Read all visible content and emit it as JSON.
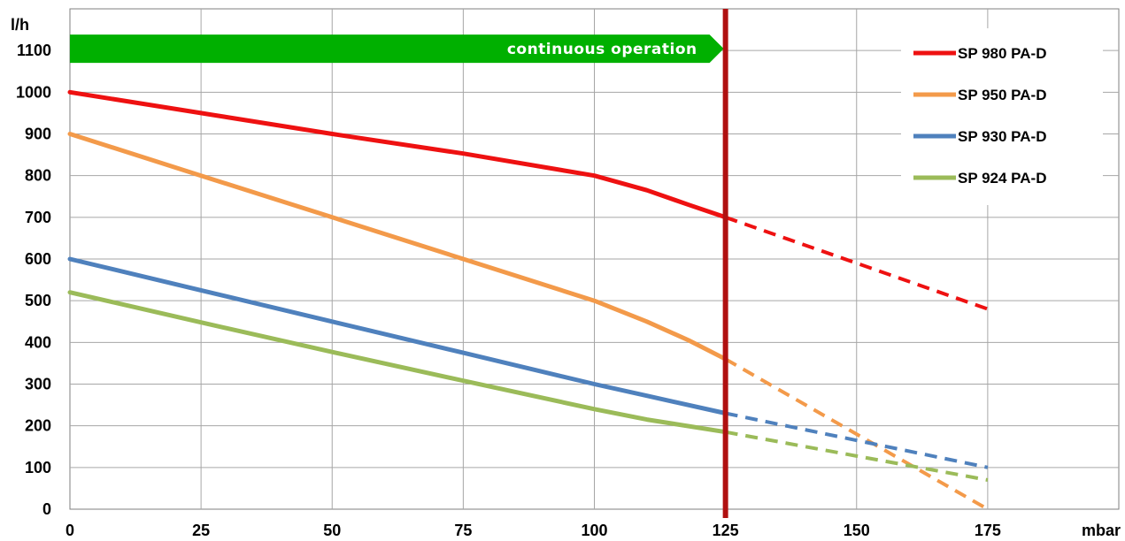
{
  "chart_data": {
    "type": "line",
    "xlabel": "mbar",
    "ylabel": "l/h",
    "xlim": [
      0,
      200
    ],
    "ylim": [
      0,
      1200
    ],
    "x_ticks": [
      0,
      25,
      50,
      75,
      100,
      125,
      150,
      175
    ],
    "y_ticks": [
      0,
      100,
      200,
      300,
      400,
      500,
      600,
      700,
      800,
      900,
      1000,
      1100
    ],
    "grid": true,
    "legend_position": "top-right",
    "limit_line": {
      "x": 125,
      "color": "#b01010"
    },
    "banner": {
      "label": "continuous operation",
      "x_start": 0,
      "x_end": 125,
      "y": 1100,
      "color": "#00b000"
    },
    "series": [
      {
        "name": "SP 980 PA-D",
        "color": "#ee1111",
        "solid": [
          [
            0,
            1000
          ],
          [
            25,
            950
          ],
          [
            50,
            900
          ],
          [
            75,
            853
          ],
          [
            100,
            800
          ],
          [
            110,
            765
          ],
          [
            118,
            730
          ],
          [
            125,
            700
          ]
        ],
        "dashed": [
          [
            125,
            700
          ],
          [
            175,
            480
          ]
        ]
      },
      {
        "name": "SP 950 PA-D",
        "color": "#f39a4a",
        "solid": [
          [
            0,
            900
          ],
          [
            25,
            800
          ],
          [
            50,
            700
          ],
          [
            75,
            600
          ],
          [
            100,
            500
          ],
          [
            110,
            450
          ],
          [
            118,
            405
          ],
          [
            125,
            360
          ]
        ],
        "dashed": [
          [
            125,
            360
          ],
          [
            175,
            0
          ]
        ]
      },
      {
        "name": "SP 930 PA-D",
        "color": "#4f81bd",
        "solid": [
          [
            0,
            600
          ],
          [
            25,
            525
          ],
          [
            50,
            450
          ],
          [
            75,
            375
          ],
          [
            100,
            300
          ],
          [
            110,
            272
          ],
          [
            125,
            230
          ]
        ],
        "dashed": [
          [
            125,
            230
          ],
          [
            175,
            100
          ]
        ]
      },
      {
        "name": "SP 924 PA-D",
        "color": "#9bbb59",
        "solid": [
          [
            0,
            520
          ],
          [
            25,
            448
          ],
          [
            50,
            377
          ],
          [
            75,
            308
          ],
          [
            100,
            240
          ],
          [
            110,
            215
          ],
          [
            125,
            185
          ]
        ],
        "dashed": [
          [
            125,
            185
          ],
          [
            175,
            70
          ]
        ]
      }
    ]
  }
}
